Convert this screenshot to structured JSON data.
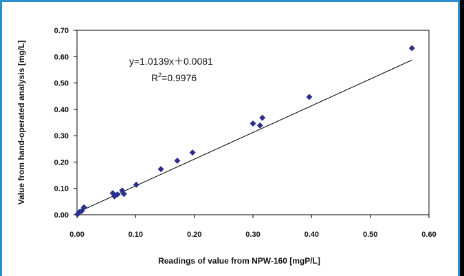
{
  "chart_data": {
    "type": "scatter",
    "title": "",
    "xlabel": "Readings of value from NPW-160 [mgP/L]",
    "ylabel": "Value from hand-operated analysis [mg/L]",
    "xlim": [
      0,
      0.6
    ],
    "ylim": [
      0,
      0.7
    ],
    "x_ticks": [
      "0.00",
      "0.10",
      "0.20",
      "0.30",
      "0.40",
      "0.50",
      "0.60"
    ],
    "y_ticks": [
      "0.00",
      "0.10",
      "0.20",
      "0.30",
      "0.40",
      "0.50",
      "0.60",
      "0.70"
    ],
    "grid": false,
    "legend": "none",
    "marker_color": "#2b2f8c",
    "frame_color": "#2a8ec8",
    "points": [
      {
        "x": 0.001,
        "y": 0.002
      },
      {
        "x": 0.004,
        "y": 0.01
      },
      {
        "x": 0.008,
        "y": 0.014
      },
      {
        "x": 0.012,
        "y": 0.028
      },
      {
        "x": 0.061,
        "y": 0.082
      },
      {
        "x": 0.064,
        "y": 0.07
      },
      {
        "x": 0.069,
        "y": 0.077
      },
      {
        "x": 0.077,
        "y": 0.092
      },
      {
        "x": 0.08,
        "y": 0.079
      },
      {
        "x": 0.101,
        "y": 0.114
      },
      {
        "x": 0.143,
        "y": 0.173
      },
      {
        "x": 0.171,
        "y": 0.205
      },
      {
        "x": 0.197,
        "y": 0.236
      },
      {
        "x": 0.3,
        "y": 0.346
      },
      {
        "x": 0.312,
        "y": 0.339
      },
      {
        "x": 0.316,
        "y": 0.368
      },
      {
        "x": 0.396,
        "y": 0.447
      },
      {
        "x": 0.571,
        "y": 0.632
      }
    ],
    "trendline": {
      "slope": 1.0139,
      "intercept": 0.0081,
      "x_range": [
        0,
        0.571
      ]
    },
    "annotations": {
      "equation": "y=1.0139x＋0.0081",
      "r2_prefix": "R",
      "r2_sup": "2",
      "r2_value": "=0.9976"
    }
  }
}
